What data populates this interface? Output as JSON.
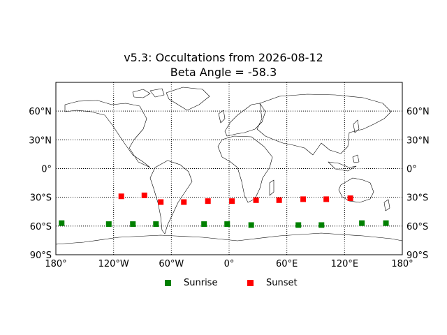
{
  "chart_data": {
    "type": "scatter",
    "title": "v5.3: Occultations from 2026-08-12",
    "subtitle": "Beta Angle = -58.3",
    "x_ticks": [
      {
        "value": -180,
        "label": "180°"
      },
      {
        "value": -120,
        "label": "120°W"
      },
      {
        "value": -60,
        "label": "60°W"
      },
      {
        "value": 0,
        "label": "0°"
      },
      {
        "value": 60,
        "label": "60°E"
      },
      {
        "value": 120,
        "label": "120°E"
      },
      {
        "value": 180,
        "label": "180°"
      }
    ],
    "y_ticks": [
      {
        "value": 60,
        "label": "60°N"
      },
      {
        "value": 30,
        "label": "30°N"
      },
      {
        "value": 0,
        "label": "0°"
      },
      {
        "value": -30,
        "label": "30°S"
      },
      {
        "value": -60,
        "label": "60°S"
      },
      {
        "value": -90,
        "label": "90°S"
      }
    ],
    "xlim": [
      -180,
      180
    ],
    "ylim": [
      -90,
      90
    ],
    "grid": true,
    "legend_position": "bottom-center",
    "series": [
      {
        "name": "Sunrise",
        "color": "#008000",
        "marker": "square",
        "points": [
          [
            -174,
            -57
          ],
          [
            -125,
            -58
          ],
          [
            -100,
            -58
          ],
          [
            -76,
            -58
          ],
          [
            -26,
            -58
          ],
          [
            -2,
            -58
          ],
          [
            23,
            -59
          ],
          [
            72,
            -59
          ],
          [
            96,
            -59
          ],
          [
            138,
            -57
          ],
          [
            163,
            -57
          ]
        ]
      },
      {
        "name": "Sunset",
        "color": "#ff0000",
        "marker": "square",
        "points": [
          [
            -112,
            -29
          ],
          [
            -88,
            -28
          ],
          [
            -71,
            -35
          ],
          [
            -47,
            -35
          ],
          [
            -22,
            -34
          ],
          [
            3,
            -34
          ],
          [
            28,
            -33
          ],
          [
            52,
            -33
          ],
          [
            77,
            -32
          ],
          [
            101,
            -32
          ],
          [
            126,
            -31
          ]
        ]
      }
    ]
  }
}
